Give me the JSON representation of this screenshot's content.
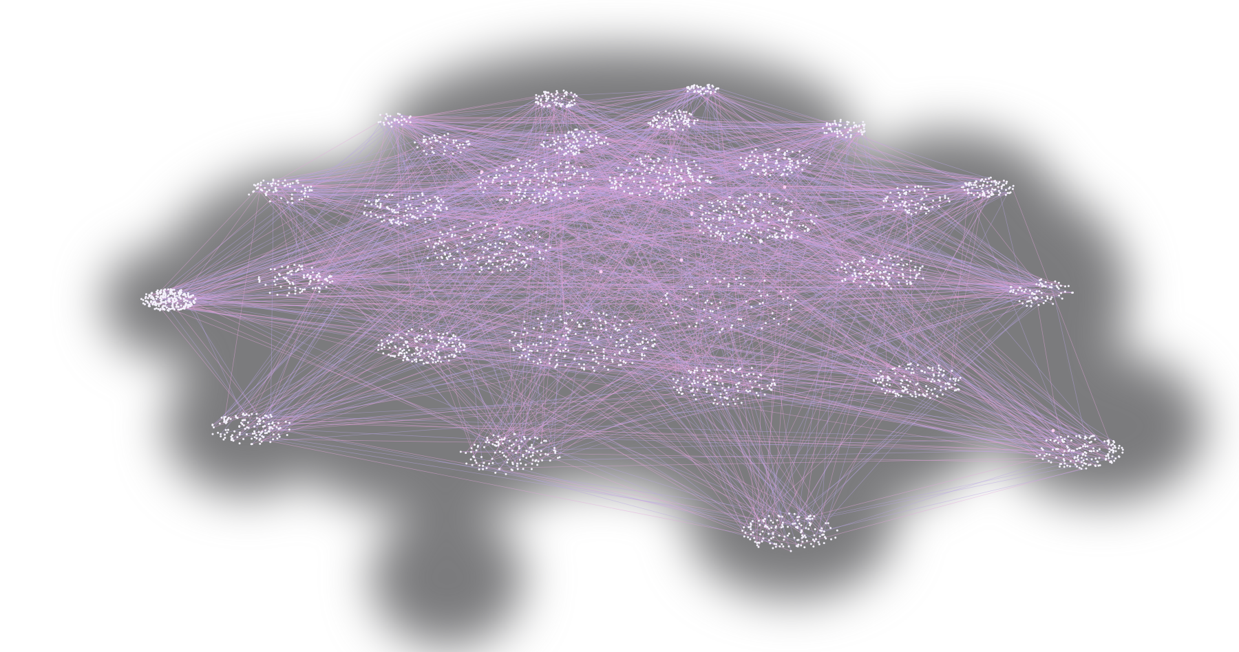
{
  "colors": {
    "background": "#ffffff",
    "backdrop": "#7b7b7d",
    "node": "#f4f1fb",
    "edge_lavender": "#b9a6e6",
    "edge_pink": "#e6a6df",
    "hub_highlight": "#ffd2f4"
  },
  "graph": {
    "type": "network",
    "cluster_count": 29,
    "clusters": [
      {
        "id": "c01",
        "size": 45
      },
      {
        "id": "c02",
        "size": 70
      },
      {
        "id": "c03",
        "size": 30
      },
      {
        "id": "c04",
        "size": 80
      },
      {
        "id": "c05",
        "size": 60
      },
      {
        "id": "c06",
        "size": 90
      },
      {
        "id": "c07",
        "size": 45
      },
      {
        "id": "c08",
        "size": 90
      },
      {
        "id": "c09",
        "size": 90
      },
      {
        "id": "c10",
        "size": 70
      },
      {
        "id": "c11",
        "size": 160
      },
      {
        "id": "c12",
        "size": 160
      },
      {
        "id": "c13",
        "size": 110
      },
      {
        "id": "c14",
        "size": 70
      },
      {
        "id": "c15",
        "size": 200
      },
      {
        "id": "c16",
        "size": 170
      },
      {
        "id": "c17",
        "size": 110
      },
      {
        "id": "c18",
        "size": 70
      },
      {
        "id": "c19",
        "size": 90
      },
      {
        "id": "c20",
        "size": 230
      },
      {
        "id": "c21",
        "size": 200
      },
      {
        "id": "c22",
        "size": 70
      },
      {
        "id": "c23",
        "size": 130
      },
      {
        "id": "c24",
        "size": 150
      },
      {
        "id": "c25",
        "size": 120
      },
      {
        "id": "c26",
        "size": 130
      },
      {
        "id": "c27",
        "size": 120
      },
      {
        "id": "c28",
        "size": 150
      },
      {
        "id": "c29",
        "size": 140
      }
    ]
  }
}
